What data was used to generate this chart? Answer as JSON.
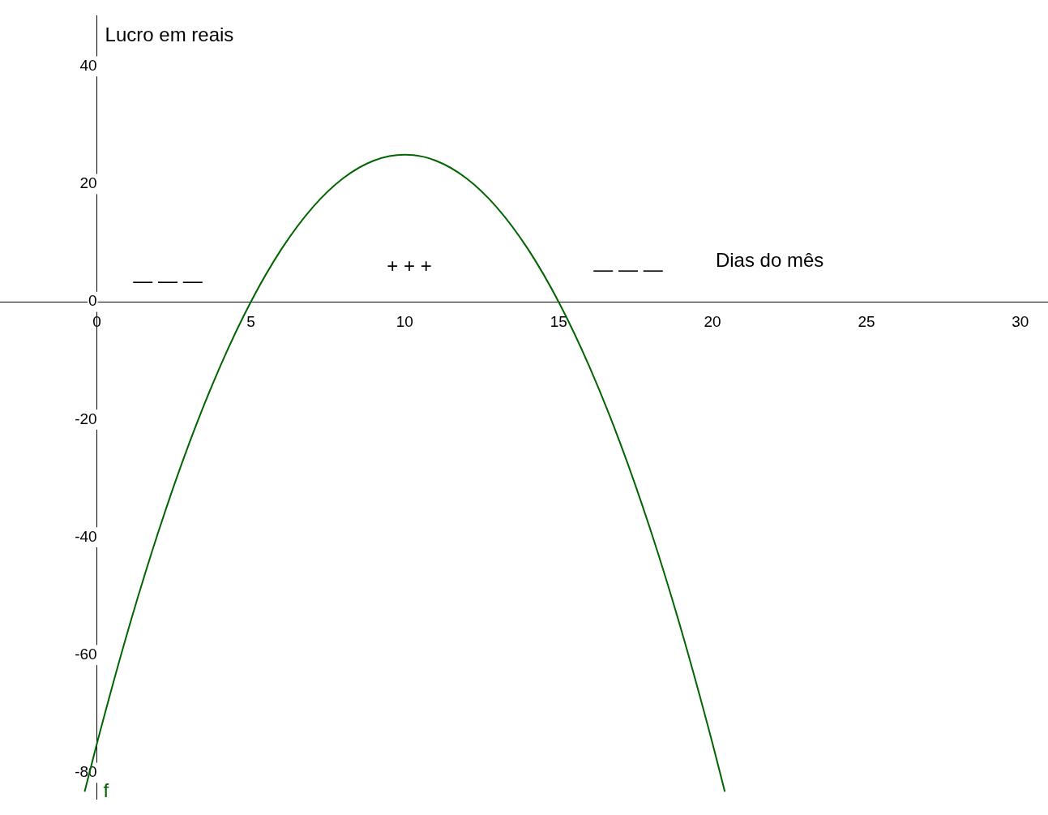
{
  "chart_data": {
    "type": "line",
    "xlabel": "Dias do mês",
    "ylabel": "Lucro em reais",
    "x": [
      -0.4,
      0,
      1,
      2,
      3,
      4,
      5,
      6,
      7,
      8,
      9,
      10,
      11,
      12,
      13,
      14,
      15,
      16,
      17,
      18,
      19,
      20,
      20.4
    ],
    "series": [
      {
        "name": "f",
        "color": "#006400",
        "values": [
          -83.2,
          -75,
          -56,
          -39,
          -24,
          -11,
          0,
          9,
          16,
          21,
          24,
          25,
          24,
          21,
          16,
          9,
          0,
          -11,
          -24,
          -39,
          -56,
          -75,
          -83.2
        ]
      }
    ],
    "xlim": [
      -3.15,
      30.9
    ],
    "ylim": [
      -84.5,
      48.6
    ],
    "xticks": [
      0,
      5,
      10,
      15,
      20,
      25,
      30
    ],
    "yticks": [
      -80,
      -60,
      -40,
      -20,
      0,
      20,
      40
    ],
    "annotations": [
      "— — —",
      "+ + +",
      "— — —"
    ],
    "grid": false,
    "legend": false,
    "marker": "none",
    "line_style": "solid"
  }
}
